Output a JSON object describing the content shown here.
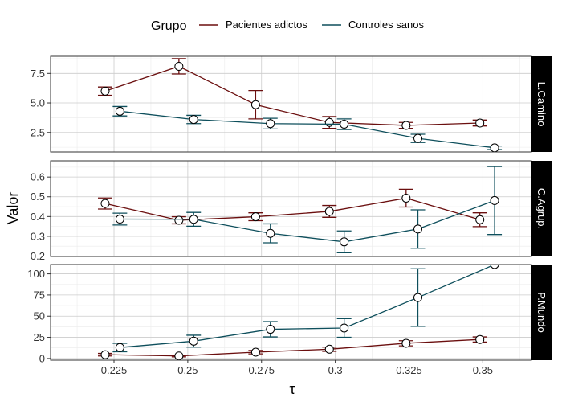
{
  "chart_data": {
    "type": "line",
    "xlabel": "τ",
    "ylabel": "Valor",
    "xlim": [
      0.2035,
      0.3665
    ],
    "x_ticks": [
      0.225,
      0.25,
      0.275,
      0.3,
      0.325,
      0.35
    ],
    "x_tick_labels": [
      "0.225",
      "0.25",
      "0.275",
      "0.3",
      "0.325",
      "0.35"
    ],
    "grid": true,
    "legend": {
      "title": "Grupo",
      "position": "top",
      "entries": [
        "Pacientes adictos",
        "Controles sanos"
      ]
    },
    "colors": {
      "Pacientes adictos": "#6b0f0f",
      "Controles sanos": "#0e4f5c"
    },
    "marker": "open-circle",
    "panels": [
      {
        "strip": "L.Camino",
        "ylim": [
          0.85,
          8.95
        ],
        "y_ticks": [
          2.5,
          5.0,
          7.5
        ],
        "y_tick_labels": [
          "2.5",
          "5.0",
          "7.5"
        ],
        "series": [
          {
            "name": "Pacientes adictos",
            "x": [
              0.222,
              0.247,
              0.273,
              0.298,
              0.324,
              0.349
            ],
            "y": [
              6.0,
              8.1,
              4.85,
              3.35,
              3.1,
              3.3
            ],
            "err": [
              0.35,
              0.65,
              1.2,
              0.5,
              0.25,
              0.25
            ]
          },
          {
            "name": "Controles sanos",
            "x": [
              0.227,
              0.252,
              0.278,
              0.303,
              0.328,
              0.354
            ],
            "y": [
              4.3,
              3.6,
              3.25,
              3.2,
              2.0,
              1.2
            ],
            "err": [
              0.4,
              0.35,
              0.45,
              0.45,
              0.35,
              0.15
            ]
          }
        ]
      },
      {
        "strip": "C.Agrup.",
        "ylim": [
          0.198,
          0.682
        ],
        "y_ticks": [
          0.2,
          0.3,
          0.4,
          0.5,
          0.6
        ],
        "y_tick_labels": [
          "0.2",
          "0.3",
          "0.4",
          "0.5",
          "0.6"
        ],
        "series": [
          {
            "name": "Pacientes adictos",
            "x": [
              0.222,
              0.247,
              0.273,
              0.298,
              0.324,
              0.349
            ],
            "y": [
              0.466,
              0.381,
              0.399,
              0.426,
              0.493,
              0.384
            ],
            "err": [
              0.028,
              0.018,
              0.02,
              0.03,
              0.045,
              0.035
            ]
          },
          {
            "name": "Controles sanos",
            "x": [
              0.227,
              0.252,
              0.278,
              0.303,
              0.328,
              0.354
            ],
            "y": [
              0.387,
              0.386,
              0.315,
              0.272,
              0.337,
              0.481
            ],
            "err": [
              0.03,
              0.035,
              0.048,
              0.055,
              0.097,
              0.172
            ]
          }
        ]
      },
      {
        "strip": "P.Mundo",
        "ylim": [
          -2,
          111
        ],
        "y_ticks": [
          0,
          25,
          50,
          75,
          100
        ],
        "y_tick_labels": [
          "0",
          "25",
          "50",
          "75",
          "100"
        ],
        "series": [
          {
            "name": "Pacientes adictos",
            "x": [
              0.222,
              0.247,
              0.273,
              0.298,
              0.324,
              0.349
            ],
            "y": [
              4.5,
              3.0,
              7.5,
              11.0,
              18.0,
              22.5
            ],
            "err": [
              1.5,
              1.0,
              2.0,
              2.5,
              3.0,
              3.0
            ]
          },
          {
            "name": "Controles sanos",
            "x": [
              0.227,
              0.252,
              0.278,
              0.303,
              0.328,
              0.354
            ],
            "y": [
              13.0,
              20.5,
              34.5,
              36.0,
              72.0,
              111.0
            ],
            "err": [
              5.0,
              7.0,
              9.0,
              11.0,
              34.0,
              0.0
            ]
          }
        ]
      }
    ]
  }
}
